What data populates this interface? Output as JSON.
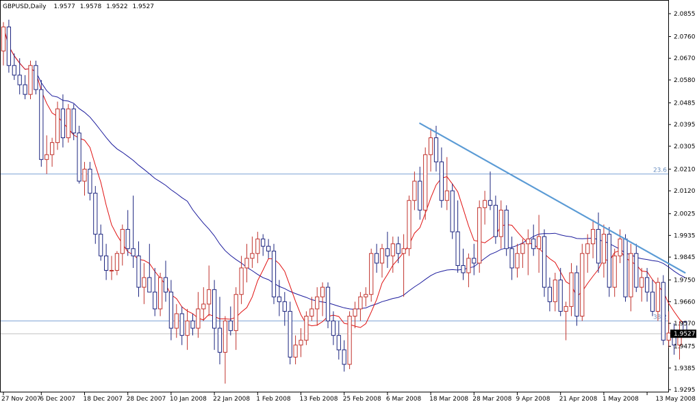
{
  "chart_data": {
    "type": "candlestick",
    "symbol_header": "GBPUSD,Daily",
    "ohlc_header": [
      "1.9577",
      "1.9578",
      "1.9522",
      "1.9527"
    ],
    "current_price_label": "1.9527",
    "current_price": 1.9527,
    "y_ticks": [
      "2.0855",
      "2.0760",
      "2.0670",
      "2.0580",
      "2.0485",
      "2.0395",
      "2.0305",
      "2.0210",
      "2.0120",
      "2.0025",
      "1.9935",
      "1.9845",
      "1.9750",
      "1.9660",
      "1.9570",
      "1.9475",
      "1.9385",
      "1.9295"
    ],
    "ylim": [
      1.9295,
      2.0875
    ],
    "x_ticks": [
      {
        "label": "27 Nov 2007",
        "i": 0
      },
      {
        "label": "6 Dec 2007",
        "i": 7
      },
      {
        "label": "18 Dec 2007",
        "i": 15
      },
      {
        "label": "28 Dec 2007",
        "i": 23
      },
      {
        "label": "10 Jan 2008",
        "i": 31
      },
      {
        "label": "22 Jan 2008",
        "i": 39
      },
      {
        "label": "1 Feb 2008",
        "i": 47
      },
      {
        "label": "13 Feb 2008",
        "i": 55
      },
      {
        "label": "25 Feb 2008",
        "i": 63
      },
      {
        "label": "6 Mar 2008",
        "i": 71
      },
      {
        "label": "18 Mar 2008",
        "i": 79
      },
      {
        "label": "28 Mar 2008",
        "i": 87
      },
      {
        "label": "9 Apr 2008",
        "i": 95
      },
      {
        "label": "21 Apr 2008",
        "i": 103
      },
      {
        "label": "1 May 2008",
        "i": 111
      },
      {
        "label": "13 May 2008",
        "i": 119
      }
    ],
    "levels": [
      {
        "label": "23.6",
        "value": 2.019,
        "color": "#7fa4d6"
      },
      {
        "label": "38.2",
        "value": 1.958,
        "color": "#7fa4d6"
      }
    ],
    "price_line": {
      "value": 1.9527,
      "color": "#c0c0c0"
    },
    "trendline": {
      "from": {
        "i": 77,
        "y": 2.04
      },
      "to": {
        "i": 126,
        "y": 1.978
      },
      "color": "#5b9bd5"
    },
    "up_color": "#c0312b",
    "down_color": "#1a237e",
    "fast_ma_color": "#e01010",
    "slow_ma_color": "#1a1a9c",
    "candles": [
      {
        "o": 2.07,
        "h": 2.082,
        "l": 2.064,
        "c": 2.08
      },
      {
        "o": 2.08,
        "h": 2.083,
        "l": 2.061,
        "c": 2.064
      },
      {
        "o": 2.064,
        "h": 2.069,
        "l": 2.058,
        "c": 2.06
      },
      {
        "o": 2.06,
        "h": 2.067,
        "l": 2.052,
        "c": 2.056
      },
      {
        "o": 2.056,
        "h": 2.06,
        "l": 2.05,
        "c": 2.052
      },
      {
        "o": 2.052,
        "h": 2.066,
        "l": 2.05,
        "c": 2.064
      },
      {
        "o": 2.064,
        "h": 2.066,
        "l": 2.052,
        "c": 2.054
      },
      {
        "o": 2.054,
        "h": 2.058,
        "l": 2.022,
        "c": 2.025
      },
      {
        "o": 2.025,
        "h": 2.035,
        "l": 2.019,
        "c": 2.027
      },
      {
        "o": 2.027,
        "h": 2.034,
        "l": 2.022,
        "c": 2.032
      },
      {
        "o": 2.032,
        "h": 2.049,
        "l": 2.029,
        "c": 2.046
      },
      {
        "o": 2.046,
        "h": 2.052,
        "l": 2.03,
        "c": 2.034
      },
      {
        "o": 2.034,
        "h": 2.048,
        "l": 2.032,
        "c": 2.046
      },
      {
        "o": 2.046,
        "h": 2.048,
        "l": 2.033,
        "c": 2.036
      },
      {
        "o": 2.036,
        "h": 2.039,
        "l": 2.015,
        "c": 2.016
      },
      {
        "o": 2.016,
        "h": 2.024,
        "l": 2.01,
        "c": 2.021
      },
      {
        "o": 2.021,
        "h": 2.024,
        "l": 2.008,
        "c": 2.011
      },
      {
        "o": 2.011,
        "h": 2.014,
        "l": 1.99,
        "c": 1.994
      },
      {
        "o": 1.994,
        "h": 1.998,
        "l": 1.983,
        "c": 1.985
      },
      {
        "o": 1.985,
        "h": 1.99,
        "l": 1.975,
        "c": 1.979
      },
      {
        "o": 1.979,
        "h": 1.985,
        "l": 1.975,
        "c": 1.979
      },
      {
        "o": 1.979,
        "h": 1.987,
        "l": 1.977,
        "c": 1.986
      },
      {
        "o": 1.986,
        "h": 1.998,
        "l": 1.981,
        "c": 1.996
      },
      {
        "o": 1.996,
        "h": 2.004,
        "l": 1.985,
        "c": 1.988
      },
      {
        "o": 1.988,
        "h": 2.01,
        "l": 1.98,
        "c": 1.985
      },
      {
        "o": 1.985,
        "h": 1.991,
        "l": 1.968,
        "c": 1.972
      },
      {
        "o": 1.972,
        "h": 1.982,
        "l": 1.965,
        "c": 1.976
      },
      {
        "o": 1.976,
        "h": 1.99,
        "l": 1.97,
        "c": 1.97
      },
      {
        "o": 1.97,
        "h": 1.98,
        "l": 1.96,
        "c": 1.963
      },
      {
        "o": 1.963,
        "h": 1.978,
        "l": 1.96,
        "c": 1.976
      },
      {
        "o": 1.976,
        "h": 1.983,
        "l": 1.966,
        "c": 1.97
      },
      {
        "o": 1.97,
        "h": 1.975,
        "l": 1.95,
        "c": 1.955
      },
      {
        "o": 1.955,
        "h": 1.965,
        "l": 1.951,
        "c": 1.961
      },
      {
        "o": 1.961,
        "h": 1.964,
        "l": 1.948,
        "c": 1.952
      },
      {
        "o": 1.952,
        "h": 1.963,
        "l": 1.946,
        "c": 1.958
      },
      {
        "o": 1.958,
        "h": 1.961,
        "l": 1.952,
        "c": 1.955
      },
      {
        "o": 1.955,
        "h": 1.97,
        "l": 1.951,
        "c": 1.963
      },
      {
        "o": 1.963,
        "h": 1.972,
        "l": 1.958,
        "c": 1.965
      },
      {
        "o": 1.965,
        "h": 1.981,
        "l": 1.96,
        "c": 1.971
      },
      {
        "o": 1.971,
        "h": 1.975,
        "l": 1.946,
        "c": 1.955
      },
      {
        "o": 1.955,
        "h": 1.968,
        "l": 1.94,
        "c": 1.945
      },
      {
        "o": 1.945,
        "h": 1.96,
        "l": 1.932,
        "c": 1.958
      },
      {
        "o": 1.958,
        "h": 1.964,
        "l": 1.952,
        "c": 1.954
      },
      {
        "o": 1.954,
        "h": 1.972,
        "l": 1.946,
        "c": 1.969
      },
      {
        "o": 1.969,
        "h": 1.985,
        "l": 1.965,
        "c": 1.98
      },
      {
        "o": 1.98,
        "h": 1.99,
        "l": 1.974,
        "c": 1.984
      },
      {
        "o": 1.984,
        "h": 1.993,
        "l": 1.98,
        "c": 1.986
      },
      {
        "o": 1.986,
        "h": 1.995,
        "l": 1.982,
        "c": 1.992
      },
      {
        "o": 1.992,
        "h": 1.994,
        "l": 1.985,
        "c": 1.989
      },
      {
        "o": 1.989,
        "h": 1.992,
        "l": 1.984,
        "c": 1.987
      },
      {
        "o": 1.987,
        "h": 1.99,
        "l": 1.965,
        "c": 1.968
      },
      {
        "o": 1.968,
        "h": 1.975,
        "l": 1.96,
        "c": 1.966
      },
      {
        "o": 1.966,
        "h": 1.97,
        "l": 1.956,
        "c": 1.962
      },
      {
        "o": 1.962,
        "h": 1.966,
        "l": 1.94,
        "c": 1.943
      },
      {
        "o": 1.943,
        "h": 1.952,
        "l": 1.94,
        "c": 1.948
      },
      {
        "o": 1.948,
        "h": 1.955,
        "l": 1.943,
        "c": 1.95
      },
      {
        "o": 1.95,
        "h": 1.962,
        "l": 1.948,
        "c": 1.96
      },
      {
        "o": 1.96,
        "h": 1.968,
        "l": 1.958,
        "c": 1.963
      },
      {
        "o": 1.963,
        "h": 1.972,
        "l": 1.956,
        "c": 1.968
      },
      {
        "o": 1.968,
        "h": 1.974,
        "l": 1.96,
        "c": 1.972
      },
      {
        "o": 1.972,
        "h": 1.974,
        "l": 1.955,
        "c": 1.958
      },
      {
        "o": 1.958,
        "h": 1.962,
        "l": 1.948,
        "c": 1.952
      },
      {
        "o": 1.952,
        "h": 1.958,
        "l": 1.942,
        "c": 1.946
      },
      {
        "o": 1.946,
        "h": 1.95,
        "l": 1.937,
        "c": 1.94
      },
      {
        "o": 1.94,
        "h": 1.962,
        "l": 1.938,
        "c": 1.96
      },
      {
        "o": 1.96,
        "h": 1.966,
        "l": 1.955,
        "c": 1.963
      },
      {
        "o": 1.963,
        "h": 1.97,
        "l": 1.958,
        "c": 1.968
      },
      {
        "o": 1.968,
        "h": 1.972,
        "l": 1.964,
        "c": 1.969
      },
      {
        "o": 1.969,
        "h": 1.988,
        "l": 1.966,
        "c": 1.986
      },
      {
        "o": 1.986,
        "h": 1.99,
        "l": 1.978,
        "c": 1.982
      },
      {
        "o": 1.982,
        "h": 1.99,
        "l": 1.976,
        "c": 1.988
      },
      {
        "o": 1.988,
        "h": 1.995,
        "l": 1.98,
        "c": 1.985
      },
      {
        "o": 1.985,
        "h": 1.993,
        "l": 1.978,
        "c": 1.99
      },
      {
        "o": 1.99,
        "h": 1.993,
        "l": 1.982,
        "c": 1.986
      },
      {
        "o": 1.986,
        "h": 1.994,
        "l": 1.968,
        "c": 1.988
      },
      {
        "o": 1.988,
        "h": 2.01,
        "l": 1.985,
        "c": 2.008
      },
      {
        "o": 2.008,
        "h": 2.02,
        "l": 2.004,
        "c": 2.016
      },
      {
        "o": 2.016,
        "h": 2.022,
        "l": 2.0,
        "c": 2.004
      },
      {
        "o": 2.004,
        "h": 2.03,
        "l": 2.0,
        "c": 2.027
      },
      {
        "o": 2.027,
        "h": 2.038,
        "l": 2.02,
        "c": 2.034
      },
      {
        "o": 2.034,
        "h": 2.039,
        "l": 2.02,
        "c": 2.024
      },
      {
        "o": 2.024,
        "h": 2.03,
        "l": 2.005,
        "c": 2.008
      },
      {
        "o": 2.008,
        "h": 2.026,
        "l": 2.004,
        "c": 2.012
      },
      {
        "o": 2.012,
        "h": 2.015,
        "l": 1.992,
        "c": 1.995
      },
      {
        "o": 1.995,
        "h": 2.008,
        "l": 1.978,
        "c": 1.981
      },
      {
        "o": 1.981,
        "h": 1.988,
        "l": 1.975,
        "c": 1.978
      },
      {
        "o": 1.978,
        "h": 1.986,
        "l": 1.972,
        "c": 1.984
      },
      {
        "o": 1.984,
        "h": 1.99,
        "l": 1.977,
        "c": 1.982
      },
      {
        "o": 1.982,
        "h": 2.008,
        "l": 1.978,
        "c": 2.005
      },
      {
        "o": 2.005,
        "h": 2.012,
        "l": 1.998,
        "c": 2.008
      },
      {
        "o": 2.008,
        "h": 2.02,
        "l": 2.004,
        "c": 2.006
      },
      {
        "o": 2.006,
        "h": 2.01,
        "l": 1.99,
        "c": 1.993
      },
      {
        "o": 1.993,
        "h": 2.008,
        "l": 1.988,
        "c": 2.004
      },
      {
        "o": 2.004,
        "h": 2.006,
        "l": 1.985,
        "c": 1.988
      },
      {
        "o": 1.988,
        "h": 1.993,
        "l": 1.975,
        "c": 1.98
      },
      {
        "o": 1.98,
        "h": 1.99,
        "l": 1.976,
        "c": 1.986
      },
      {
        "o": 1.986,
        "h": 1.992,
        "l": 1.98,
        "c": 1.99
      },
      {
        "o": 1.99,
        "h": 1.996,
        "l": 1.977,
        "c": 1.992
      },
      {
        "o": 1.992,
        "h": 1.998,
        "l": 1.985,
        "c": 1.988
      },
      {
        "o": 1.988,
        "h": 2.002,
        "l": 1.978,
        "c": 1.993
      },
      {
        "o": 1.993,
        "h": 1.996,
        "l": 1.968,
        "c": 1.972
      },
      {
        "o": 1.972,
        "h": 1.976,
        "l": 1.962,
        "c": 1.966
      },
      {
        "o": 1.966,
        "h": 1.978,
        "l": 1.962,
        "c": 1.975
      },
      {
        "o": 1.975,
        "h": 1.98,
        "l": 1.96,
        "c": 1.962
      },
      {
        "o": 1.962,
        "h": 1.966,
        "l": 1.95,
        "c": 1.964
      },
      {
        "o": 1.964,
        "h": 1.982,
        "l": 1.96,
        "c": 1.978
      },
      {
        "o": 1.978,
        "h": 1.981,
        "l": 1.956,
        "c": 1.96
      },
      {
        "o": 1.96,
        "h": 1.99,
        "l": 1.958,
        "c": 1.986
      },
      {
        "o": 1.986,
        "h": 1.994,
        "l": 1.978,
        "c": 1.99
      },
      {
        "o": 1.99,
        "h": 2.0,
        "l": 1.984,
        "c": 1.996
      },
      {
        "o": 1.996,
        "h": 2.003,
        "l": 1.978,
        "c": 1.982
      },
      {
        "o": 1.982,
        "h": 1.998,
        "l": 1.976,
        "c": 1.994
      },
      {
        "o": 1.994,
        "h": 1.997,
        "l": 1.968,
        "c": 1.972
      },
      {
        "o": 1.972,
        "h": 1.988,
        "l": 1.968,
        "c": 1.985
      },
      {
        "o": 1.985,
        "h": 1.996,
        "l": 1.982,
        "c": 1.992
      },
      {
        "o": 1.992,
        "h": 1.994,
        "l": 1.966,
        "c": 1.968
      },
      {
        "o": 1.968,
        "h": 1.99,
        "l": 1.962,
        "c": 1.986
      },
      {
        "o": 1.986,
        "h": 1.99,
        "l": 1.97,
        "c": 1.972
      },
      {
        "o": 1.972,
        "h": 1.98,
        "l": 1.966,
        "c": 1.976
      },
      {
        "o": 1.976,
        "h": 1.98,
        "l": 1.966,
        "c": 1.97
      },
      {
        "o": 1.97,
        "h": 1.975,
        "l": 1.96,
        "c": 1.962
      },
      {
        "o": 1.962,
        "h": 1.976,
        "l": 1.958,
        "c": 1.974
      },
      {
        "o": 1.974,
        "h": 1.977,
        "l": 1.948,
        "c": 1.95
      },
      {
        "o": 1.95,
        "h": 1.962,
        "l": 1.947,
        "c": 1.953
      },
      {
        "o": 1.953,
        "h": 1.957,
        "l": 1.944,
        "c": 1.948
      },
      {
        "o": 1.948,
        "h": 1.958,
        "l": 1.942,
        "c": 1.954
      },
      {
        "o": 1.9577,
        "h": 1.9578,
        "l": 1.9522,
        "c": 1.9527
      }
    ]
  }
}
